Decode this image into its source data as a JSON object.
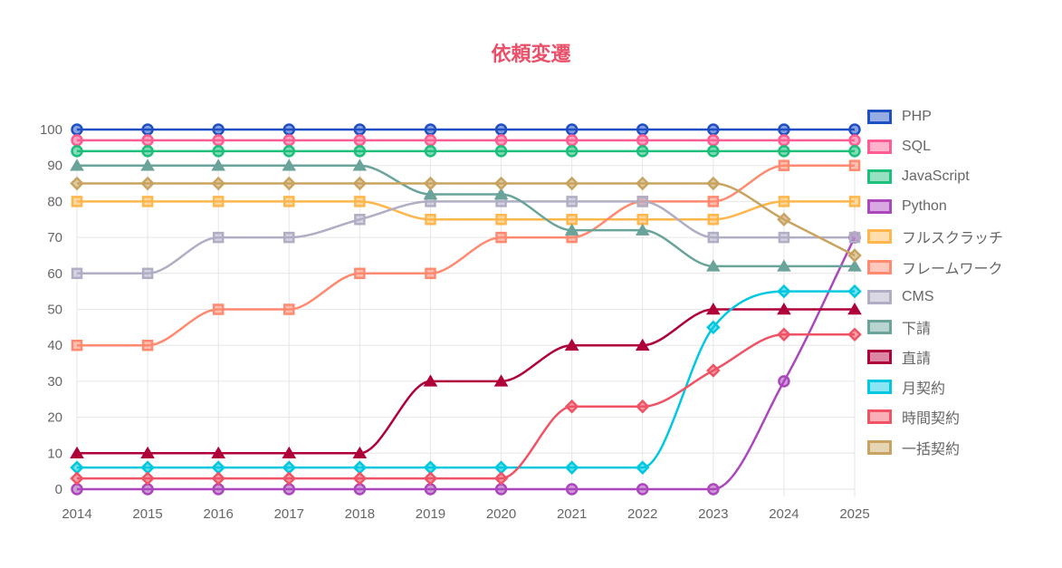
{
  "chart_data": {
    "type": "line",
    "title": "依頼変遷",
    "x": [
      "2014",
      "2015",
      "2016",
      "2017",
      "2018",
      "2019",
      "2020",
      "2021",
      "2022",
      "2023",
      "2024",
      "2025"
    ],
    "ylim": [
      0,
      100
    ],
    "yticks": [
      0,
      10,
      20,
      30,
      40,
      50,
      60,
      70,
      80,
      90,
      100
    ],
    "grid": true,
    "legend_position": "right",
    "interpolation": "monotone",
    "series": [
      {
        "name": "PHP",
        "color": "#1f4fc4",
        "marker": "circle",
        "values": [
          100,
          100,
          100,
          100,
          100,
          100,
          100,
          100,
          100,
          100,
          100,
          100
        ]
      },
      {
        "name": "SQL",
        "color": "#ff5c93",
        "marker": "circle",
        "values": [
          97,
          97,
          97,
          97,
          97,
          97,
          97,
          97,
          97,
          97,
          97,
          97
        ]
      },
      {
        "name": "JavaScript",
        "color": "#1dbf7a",
        "marker": "circle",
        "values": [
          94,
          94,
          94,
          94,
          94,
          94,
          94,
          94,
          94,
          94,
          94,
          94
        ]
      },
      {
        "name": "Python",
        "color": "#ab47bc",
        "marker": "circle",
        "values": [
          0,
          0,
          0,
          0,
          0,
          0,
          0,
          0,
          0,
          0,
          30,
          70
        ]
      },
      {
        "name": "フルスクラッチ",
        "color": "#ffb74d",
        "marker": "square",
        "values": [
          80,
          80,
          80,
          80,
          80,
          75,
          75,
          75,
          75,
          75,
          80,
          80
        ]
      },
      {
        "name": "フレームワーク",
        "color": "#ff8a70",
        "marker": "square",
        "values": [
          40,
          40,
          50,
          50,
          60,
          60,
          70,
          70,
          80,
          80,
          90,
          90
        ]
      },
      {
        "name": "CMS",
        "color": "#b0aec4",
        "marker": "square",
        "values": [
          60,
          60,
          70,
          70,
          75,
          80,
          80,
          80,
          80,
          70,
          70,
          70
        ]
      },
      {
        "name": "下請",
        "color": "#6aa39a",
        "marker": "triangle",
        "values": [
          90,
          90,
          90,
          90,
          90,
          82,
          82,
          72,
          72,
          62,
          62,
          62
        ]
      },
      {
        "name": "直請",
        "color": "#b0003a",
        "marker": "triangle",
        "values": [
          10,
          10,
          10,
          10,
          10,
          30,
          30,
          40,
          40,
          50,
          50,
          50
        ]
      },
      {
        "name": "月契約",
        "color": "#00c8e0",
        "marker": "diamond",
        "values": [
          6,
          6,
          6,
          6,
          6,
          6,
          6,
          6,
          6,
          45,
          55,
          55
        ]
      },
      {
        "name": "時間契約",
        "color": "#ef5366",
        "marker": "diamond",
        "values": [
          3,
          3,
          3,
          3,
          3,
          3,
          3,
          23,
          23,
          33,
          43,
          43
        ]
      },
      {
        "name": "一括契約",
        "color": "#c8a460",
        "marker": "diamond",
        "values": [
          85,
          85,
          85,
          85,
          85,
          85,
          85,
          85,
          85,
          85,
          75,
          65
        ]
      }
    ]
  }
}
